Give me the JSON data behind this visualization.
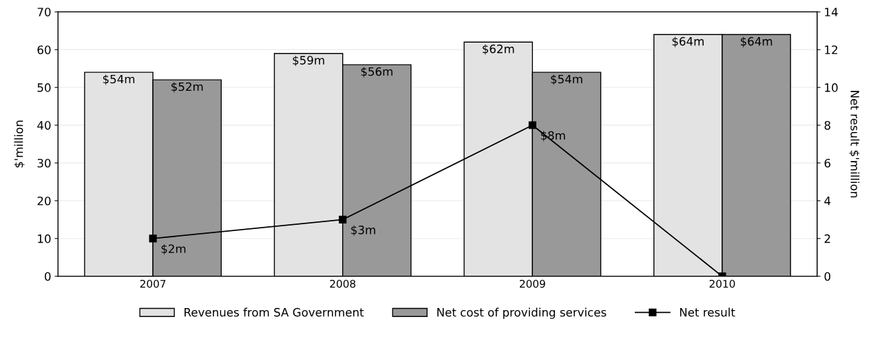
{
  "chart_data": {
    "type": "bar",
    "categories": [
      "2007",
      "2008",
      "2009",
      "2010"
    ],
    "ylabel": "$'million",
    "y2label": "Net result $'million",
    "series": [
      {
        "name": "Revenues from SA Government",
        "color": "#e3e3e3",
        "values": [
          54,
          59,
          62,
          64
        ],
        "value_labels": [
          "$54m",
          "$59m",
          "$62m",
          "$64m"
        ]
      },
      {
        "name": "Net cost of providing services",
        "color": "#999999",
        "values": [
          52,
          56,
          54,
          64
        ],
        "value_labels": [
          "$52m",
          "$56m",
          "$54m",
          "$64m"
        ]
      },
      {
        "name": "Net result",
        "type": "line",
        "axis": "y2",
        "color": "#000000",
        "marker": "square",
        "line_style": "solid",
        "values": [
          2,
          3,
          8,
          0
        ],
        "value_labels": [
          "$2m",
          "$3m",
          "$8m",
          null
        ]
      }
    ],
    "ylim": [
      0,
      70
    ],
    "yticks": [
      0,
      10,
      20,
      30,
      40,
      50,
      60,
      70
    ],
    "y2lim": [
      0,
      14
    ],
    "y2ticks": [
      0,
      2,
      4,
      6,
      8,
      10,
      12,
      14
    ],
    "grid": "y",
    "legend": "bottom"
  }
}
